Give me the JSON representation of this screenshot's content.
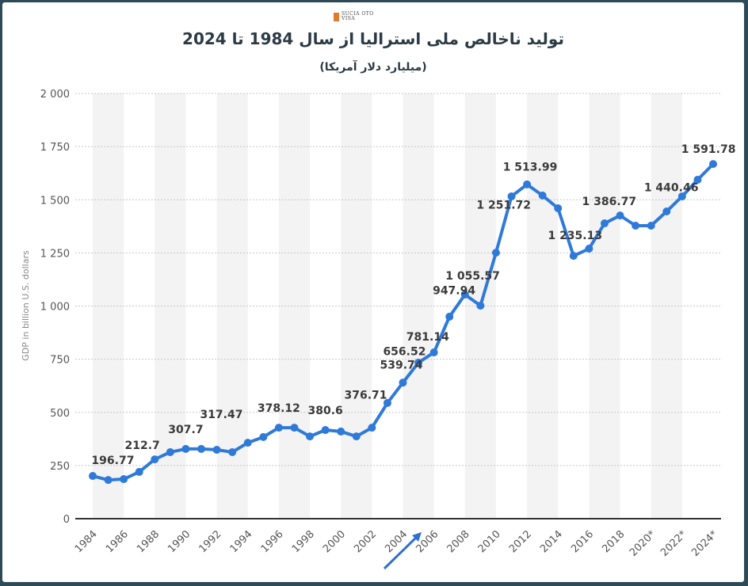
{
  "header": {
    "logo_text": "SUCIA OTO",
    "logo_sub": "VISA",
    "title": "تولید ناخالص ملی استرالیا از سال 1984 تا 2024",
    "subtitle": "(میلیارد دلار آمریکا)"
  },
  "chart_data": {
    "type": "line",
    "title": "تولید ناخالص ملی استرالیا از سال 1984 تا 2024",
    "subtitle": "(میلیارد دلار آمریکا)",
    "xlabel": "",
    "ylabel": "GDP in billion U.S. dollars",
    "ylim": [
      0,
      2000
    ],
    "yticks": [
      0,
      250,
      500,
      750,
      1000,
      1250,
      1500,
      1750,
      2000
    ],
    "ytick_labels": [
      "0",
      "250",
      "500",
      "750",
      "1 000",
      "1 250",
      "1 500",
      "1 750",
      "2 000"
    ],
    "xtick_labels": [
      "1984",
      "1986",
      "1988",
      "1990",
      "1992",
      "1994",
      "1996",
      "1998",
      "2000",
      "2002",
      "2004",
      "2006",
      "2008",
      "2010",
      "2012",
      "2014",
      "2016",
      "2018",
      "2020*",
      "2022*",
      "2024*"
    ],
    "grid": true,
    "color": "#2f7ad9",
    "x": [
      1984,
      1985,
      1986,
      1987,
      1988,
      1989,
      1990,
      1991,
      1992,
      1993,
      1994,
      1995,
      1996,
      1997,
      1998,
      1999,
      2000,
      2001,
      2002,
      2003,
      2004,
      2005,
      2006,
      2007,
      2008,
      2009,
      2010,
      2011,
      2012,
      2013,
      2014,
      2015,
      2016,
      2017,
      2018,
      2019,
      2020,
      2021,
      2022,
      2023,
      2024
    ],
    "values": [
      201,
      182,
      186,
      220,
      279,
      313,
      328,
      328,
      324,
      313,
      357,
      384,
      428,
      428,
      387,
      417,
      410,
      387,
      428,
      544,
      640,
      734,
      782,
      950,
      1054,
      1002,
      1251,
      1516,
      1572,
      1520,
      1460,
      1236,
      1270,
      1389,
      1426,
      1378,
      1378,
      1445,
      1516,
      1594,
      1668
    ],
    "annotations": [
      {
        "year": 1985.3,
        "text": "196.77"
      },
      {
        "year": 1987.2,
        "text": "212.7"
      },
      {
        "year": 1990,
        "text": "307.7"
      },
      {
        "year": 1992.3,
        "text": "317.47"
      },
      {
        "year": 1996,
        "text": "378.12"
      },
      {
        "year": 1999,
        "text": "380.6"
      },
      {
        "year": 2001.6,
        "text": "376.71"
      },
      {
        "year": 2003.9,
        "text": "539.74"
      },
      {
        "year": 2004.1,
        "text": "656.52"
      },
      {
        "year": 2005.6,
        "text": "781.14"
      },
      {
        "year": 2007.3,
        "text": "947.94"
      },
      {
        "year": 2008.5,
        "text": "1 055.57"
      },
      {
        "year": 2010.5,
        "text": "1 251.72"
      },
      {
        "year": 2012.2,
        "text": "1 513.99"
      },
      {
        "year": 2015.1,
        "text": "1 235.13"
      },
      {
        "year": 2017.3,
        "text": "1 386.77"
      },
      {
        "year": 2021.3,
        "text": "1 440.46"
      },
      {
        "year": 2023.7,
        "text": "1 591.78"
      }
    ]
  }
}
